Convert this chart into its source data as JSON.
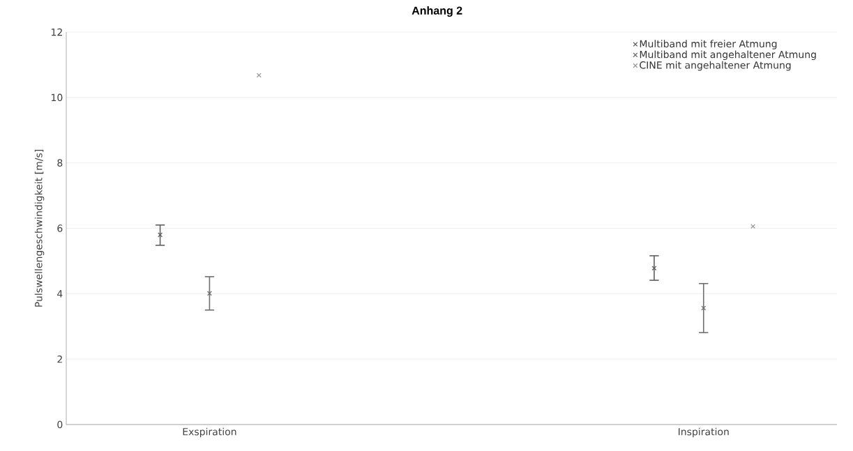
{
  "chart_data": {
    "type": "scatter",
    "title": "Anhang 2",
    "ylabel": "Pulswellengeschwindigkeit [m/s]",
    "categories": [
      "Exspiration",
      "Inspiration"
    ],
    "series": [
      {
        "name": "Multiband mit freier Atmung",
        "color": "#5f5f5f",
        "values": [
          5.8,
          4.78
        ],
        "errors": [
          [
            5.48,
            6.1
          ],
          [
            4.41,
            5.16
          ]
        ]
      },
      {
        "name": "Multiband mit angehaltener Atmung",
        "color": "#6f6f6f",
        "values": [
          4.01,
          3.56
        ],
        "errors": [
          [
            3.5,
            4.52
          ],
          [
            2.81,
            4.31
          ]
        ]
      },
      {
        "name": "CINE mit angehaltener Atmung",
        "color": "#9a9a9a",
        "values": [
          10.68,
          6.06
        ]
      }
    ],
    "ylim": [
      0,
      12
    ],
    "yticks": [
      0,
      2,
      4,
      6,
      8,
      10,
      12
    ],
    "grid": "y",
    "legend": "top right",
    "marker": "cross"
  }
}
